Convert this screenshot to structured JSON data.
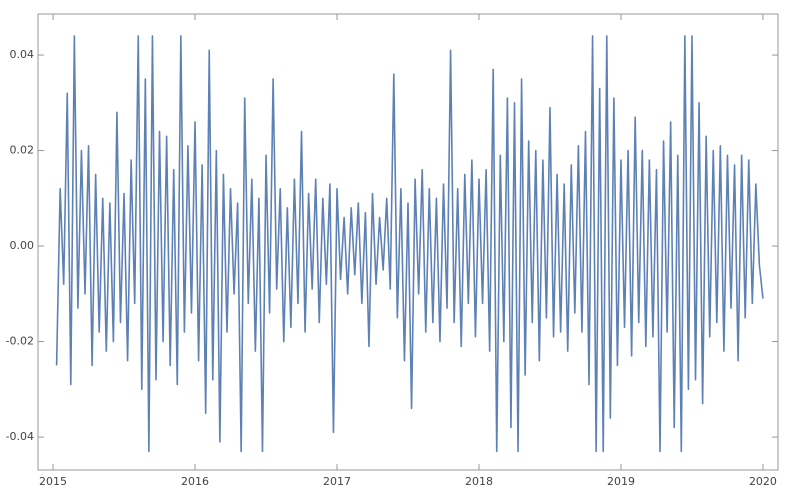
{
  "chart_data": {
    "type": "line",
    "x": [
      2015.025,
      2015.05,
      2015.075,
      2015.1,
      2015.125,
      2015.15,
      2015.175,
      2015.2,
      2015.225,
      2015.25,
      2015.275,
      2015.3,
      2015.325,
      2015.35,
      2015.375,
      2015.4,
      2015.425,
      2015.45,
      2015.475,
      2015.5,
      2015.525,
      2015.55,
      2015.575,
      2015.6,
      2015.625,
      2015.65,
      2015.675,
      2015.7,
      2015.725,
      2015.75,
      2015.775,
      2015.8,
      2015.825,
      2015.85,
      2015.875,
      2015.9,
      2015.925,
      2015.95,
      2015.975,
      2016.0,
      2016.025,
      2016.05,
      2016.075,
      2016.1,
      2016.125,
      2016.15,
      2016.175,
      2016.2,
      2016.225,
      2016.25,
      2016.275,
      2016.3,
      2016.325,
      2016.35,
      2016.375,
      2016.4,
      2016.425,
      2016.45,
      2016.475,
      2016.5,
      2016.525,
      2016.55,
      2016.575,
      2016.6,
      2016.625,
      2016.65,
      2016.675,
      2016.7,
      2016.725,
      2016.75,
      2016.775,
      2016.8,
      2016.825,
      2016.85,
      2016.875,
      2016.9,
      2016.925,
      2016.95,
      2016.975,
      2017.0,
      2017.025,
      2017.05,
      2017.075,
      2017.1,
      2017.125,
      2017.15,
      2017.175,
      2017.2,
      2017.225,
      2017.25,
      2017.275,
      2017.3,
      2017.325,
      2017.35,
      2017.375,
      2017.4,
      2017.425,
      2017.45,
      2017.475,
      2017.5,
      2017.525,
      2017.55,
      2017.575,
      2017.6,
      2017.625,
      2017.65,
      2017.675,
      2017.7,
      2017.725,
      2017.75,
      2017.775,
      2017.8,
      2017.825,
      2017.85,
      2017.875,
      2017.9,
      2017.925,
      2017.95,
      2017.975,
      2018.0,
      2018.025,
      2018.05,
      2018.075,
      2018.1,
      2018.125,
      2018.15,
      2018.175,
      2018.2,
      2018.225,
      2018.25,
      2018.275,
      2018.3,
      2018.325,
      2018.35,
      2018.375,
      2018.4,
      2018.425,
      2018.45,
      2018.475,
      2018.5,
      2018.525,
      2018.55,
      2018.575,
      2018.6,
      2018.625,
      2018.65,
      2018.675,
      2018.7,
      2018.725,
      2018.75,
      2018.775,
      2018.8,
      2018.825,
      2018.85,
      2018.875,
      2018.9,
      2018.925,
      2018.95,
      2018.975,
      2019.0,
      2019.025,
      2019.05,
      2019.075,
      2019.1,
      2019.125,
      2019.15,
      2019.175,
      2019.2,
      2019.225,
      2019.25,
      2019.275,
      2019.3,
      2019.325,
      2019.35,
      2019.375,
      2019.4,
      2019.425,
      2019.45,
      2019.475,
      2019.5,
      2019.525,
      2019.55,
      2019.575,
      2019.6,
      2019.625,
      2019.65,
      2019.675,
      2019.7,
      2019.725,
      2019.75,
      2019.775,
      2019.8,
      2019.825,
      2019.85,
      2019.875,
      2019.9,
      2019.925,
      2019.95,
      2019.975,
      2020.0
    ],
    "series": [
      {
        "color": "#5e81b5",
        "values": [
          -0.025,
          0.012,
          -0.008,
          0.032,
          -0.029,
          0.044,
          -0.013,
          0.02,
          -0.01,
          0.021,
          -0.025,
          0.015,
          -0.018,
          0.01,
          -0.022,
          0.009,
          -0.02,
          0.028,
          -0.016,
          0.011,
          -0.024,
          0.018,
          -0.012,
          0.044,
          -0.03,
          0.035,
          -0.043,
          0.044,
          -0.028,
          0.024,
          -0.02,
          0.023,
          -0.025,
          0.016,
          -0.029,
          0.044,
          -0.018,
          0.021,
          -0.014,
          0.026,
          -0.024,
          0.017,
          -0.035,
          0.041,
          -0.028,
          0.02,
          -0.041,
          0.015,
          -0.018,
          0.012,
          -0.01,
          0.009,
          -0.043,
          0.031,
          -0.012,
          0.014,
          -0.022,
          0.01,
          -0.043,
          0.019,
          -0.014,
          0.035,
          -0.009,
          0.012,
          -0.02,
          0.008,
          -0.017,
          0.014,
          -0.012,
          0.024,
          -0.018,
          0.011,
          -0.009,
          0.014,
          -0.016,
          0.01,
          -0.008,
          0.013,
          -0.039,
          0.012,
          -0.007,
          0.006,
          -0.01,
          0.008,
          -0.006,
          0.009,
          -0.012,
          0.007,
          -0.021,
          0.011,
          -0.008,
          0.006,
          -0.005,
          0.01,
          -0.009,
          0.036,
          -0.015,
          0.012,
          -0.024,
          0.009,
          -0.034,
          0.014,
          -0.01,
          0.016,
          -0.018,
          0.012,
          -0.016,
          0.01,
          -0.02,
          0.013,
          -0.013,
          0.041,
          -0.016,
          0.012,
          -0.021,
          0.015,
          -0.012,
          0.018,
          -0.019,
          0.014,
          -0.012,
          0.016,
          -0.022,
          0.037,
          -0.043,
          0.019,
          -0.02,
          0.031,
          -0.038,
          0.03,
          -0.043,
          0.035,
          -0.027,
          0.022,
          -0.016,
          0.02,
          -0.024,
          0.018,
          -0.015,
          0.029,
          -0.019,
          0.015,
          -0.018,
          0.013,
          -0.022,
          0.017,
          -0.014,
          0.021,
          -0.018,
          0.024,
          -0.029,
          0.044,
          -0.043,
          0.033,
          -0.043,
          0.044,
          -0.036,
          0.031,
          -0.025,
          0.018,
          -0.017,
          0.02,
          -0.023,
          0.027,
          -0.016,
          0.02,
          -0.021,
          0.018,
          -0.019,
          0.016,
          -0.043,
          0.022,
          -0.018,
          0.026,
          -0.038,
          0.019,
          -0.043,
          0.044,
          -0.03,
          0.044,
          -0.028,
          0.03,
          -0.033,
          0.023,
          -0.019,
          0.02,
          -0.016,
          0.021,
          -0.022,
          0.019,
          -0.013,
          0.017,
          -0.024,
          0.019,
          -0.015,
          0.018,
          -0.012,
          0.013,
          -0.004,
          -0.011
        ]
      }
    ],
    "xlim": [
      2014.894,
      2020.106
    ],
    "xticks": [
      2015,
      2016,
      2017,
      2018,
      2019,
      2020
    ],
    "ylim": [
      -0.0469,
      0.0486
    ],
    "yticks": [
      {
        "value": -0.04,
        "label": "-0.04"
      },
      {
        "value": -0.02,
        "label": "-0.02"
      },
      {
        "value": 0,
        "label": "0.00"
      },
      0.02,
      0.04
    ]
  }
}
